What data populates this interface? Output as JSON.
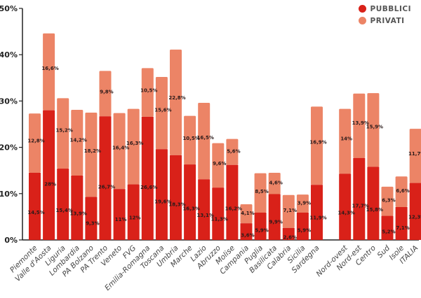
{
  "chart_data": {
    "type": "bar",
    "stacked": true,
    "title": "",
    "xlabel": "",
    "ylabel": "",
    "ylim": [
      0,
      50
    ],
    "yticks": [
      "0%",
      "10%",
      "20%",
      "30%",
      "40%",
      "50%"
    ],
    "ytick_values": [
      0,
      10,
      20,
      30,
      40,
      50
    ],
    "grid": false,
    "legend_position": "top-right",
    "categories": [
      "Piemonte",
      "Valle d'Aosta",
      "Liguria",
      "Lombardia",
      "PA Bolzano",
      "PA Trento",
      "Veneto",
      "FVG",
      "Emilia-Romagna",
      "Toscana",
      "Umbria",
      "Marche",
      "Lazio",
      "Abruzzo",
      "Molise",
      "Campania",
      "Puglia",
      "Basilicata",
      "Calabria",
      "Sicilia",
      "Sardegna",
      "",
      "Nord-ovest",
      "Nord-est",
      "Centro",
      "Sud",
      "Isole",
      "ITALIA"
    ],
    "series": [
      {
        "name": "PUBBLICI",
        "color": "#d92119",
        "values": [
          14.5,
          28,
          15.4,
          13.9,
          9.3,
          26.7,
          11,
          12,
          26.6,
          19.6,
          18.3,
          16.3,
          13.1,
          11.3,
          16.2,
          3.6,
          5.9,
          9.9,
          2.6,
          5.9,
          11.9,
          null,
          14.3,
          17.7,
          15.8,
          5.2,
          7.1,
          12.3
        ],
        "labels": [
          "14,5%",
          "28%",
          "15,4%",
          "13,9%",
          "9,3%",
          "26,7%",
          "11%",
          "12%",
          "26,6%",
          "19,6%",
          "18,3%",
          "16,3%",
          "13,1%",
          "11,3%",
          "16,2%",
          "3,6%",
          "5,9%",
          "9,9%",
          "2,6%",
          "5,9%",
          "11,9%",
          "",
          "14,3%",
          "17,7%",
          "15,8%",
          "5,2%",
          "7,1%",
          "12,3%"
        ]
      },
      {
        "name": "PRIVATI",
        "color": "#ec8466",
        "values": [
          12.8,
          16.6,
          15.2,
          14.2,
          18.2,
          9.8,
          16.4,
          16.3,
          10.5,
          15.6,
          22.8,
          10.5,
          16.5,
          9.6,
          5.6,
          4.1,
          8.5,
          4.6,
          7.1,
          3.9,
          16.9,
          null,
          14,
          13.9,
          15.9,
          6.3,
          6.6,
          11.7
        ],
        "labels": [
          "12,8%",
          "16,6%",
          "15,2%",
          "14,2%",
          "18,2%",
          "9,8%",
          "16,4%",
          "16,3%",
          "10,5%",
          "15,6%",
          "22,8%",
          "10,5%",
          "16,5%",
          "9,6%",
          "5,6%",
          "4,1%",
          "8,5%",
          "4,6%",
          "7,1%",
          "3,9%",
          "16,9%",
          "",
          "14%",
          "13,9%",
          "15,9%",
          "6,3%",
          "6,6%",
          "11,7%"
        ]
      }
    ]
  },
  "legend": {
    "items": [
      {
        "label": "PUBBLICI",
        "color": "#d92119"
      },
      {
        "label": "PRIVATI",
        "color": "#ec8466"
      }
    ]
  }
}
